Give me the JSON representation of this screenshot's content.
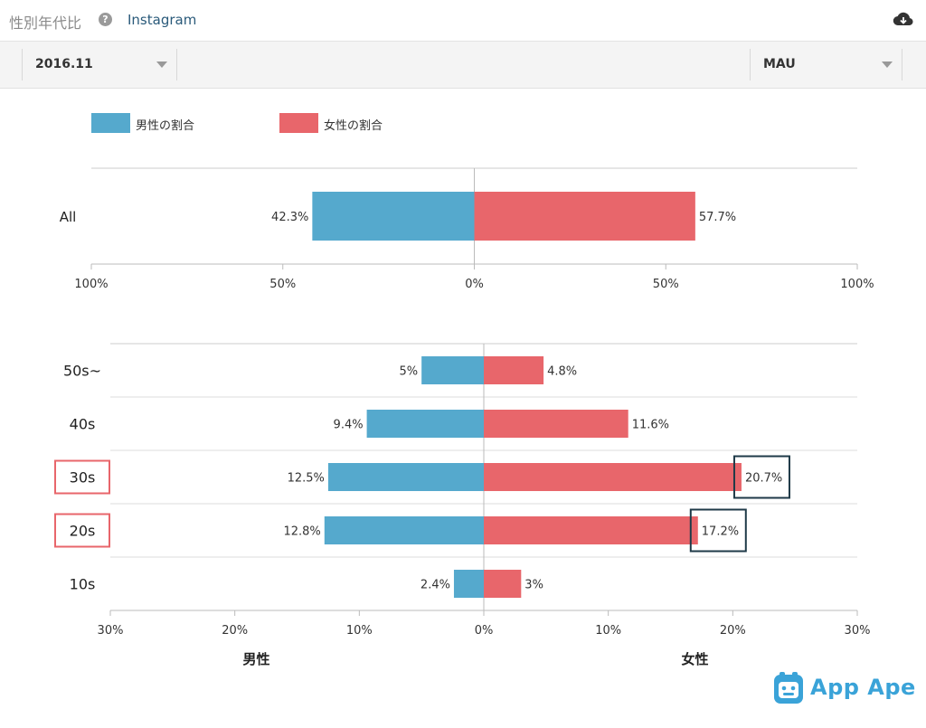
{
  "header": {
    "title": "性別年代比",
    "app_name": "Instagram",
    "help_icon": "help-icon",
    "download_icon": "cloud-download-icon"
  },
  "filters": {
    "date_value": "2016.11",
    "metric_value": "MAU"
  },
  "colors": {
    "male": "#55a9cd",
    "female": "#e8666b",
    "highlight_row": "#e8666b",
    "highlight_value": "#1f3a48"
  },
  "legend": {
    "male_label": "男性の割合",
    "female_label": "女性の割合"
  },
  "watermark": {
    "text": "App Ape"
  },
  "chart_data": [
    {
      "type": "bar",
      "orientation": "horizontal-diverging",
      "categories": [
        "All"
      ],
      "series": [
        {
          "name": "男性の割合",
          "values": [
            42.3
          ]
        },
        {
          "name": "女性の割合",
          "values": [
            57.7
          ]
        }
      ],
      "value_labels": {
        "male": [
          "42.3%"
        ],
        "female": [
          "57.7%"
        ]
      },
      "xlim": [
        -100,
        100
      ],
      "ticks": [
        "100%",
        "50%",
        "0%",
        "50%",
        "100%"
      ]
    },
    {
      "type": "bar",
      "orientation": "horizontal-diverging",
      "categories": [
        "50s~",
        "40s",
        "30s",
        "20s",
        "10s"
      ],
      "series": [
        {
          "name": "男性の割合",
          "values": [
            5,
            9.4,
            12.5,
            12.8,
            2.4
          ]
        },
        {
          "name": "女性の割合",
          "values": [
            4.8,
            11.6,
            20.7,
            17.2,
            3
          ]
        }
      ],
      "value_labels": {
        "male": [
          "5%",
          "9.4%",
          "12.5%",
          "12.8%",
          "2.4%"
        ],
        "female": [
          "4.8%",
          "11.6%",
          "20.7%",
          "17.2%",
          "3%"
        ]
      },
      "xlim": [
        -30,
        30
      ],
      "ticks": [
        "30%",
        "20%",
        "10%",
        "0%",
        "10%",
        "20%",
        "30%"
      ],
      "xlabel_left": "男性",
      "xlabel_right": "女性",
      "highlighted_categories": [
        "30s",
        "20s"
      ],
      "highlighted_female_values": [
        "30s",
        "20s"
      ]
    }
  ]
}
